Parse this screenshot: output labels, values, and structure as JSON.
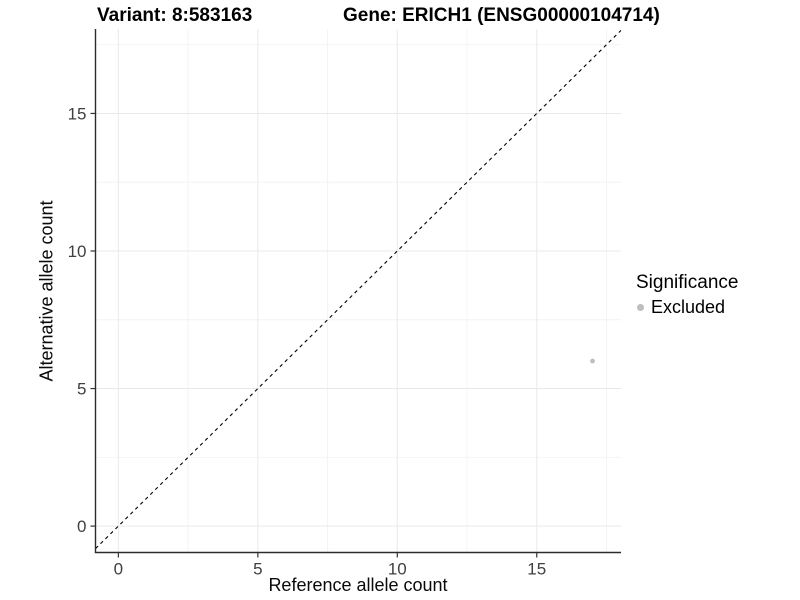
{
  "chart_data": {
    "type": "scatter",
    "title_left": "Variant: 8:583163",
    "title_right": "Gene: ERICH1 (ENSG00000104714)",
    "xlabel": "Reference allele count",
    "ylabel": "Alternative allele count",
    "xlim": [
      -0.82,
      18.02
    ],
    "ylim": [
      -0.96,
      18.07
    ],
    "x_ticks": [
      0,
      5,
      10,
      15
    ],
    "y_ticks": [
      0,
      5,
      10,
      15
    ],
    "x_minor_ticks": [
      2.5,
      7.5,
      12.5,
      17.5
    ],
    "y_minor_ticks": [
      2.5,
      7.5,
      12.5,
      17.5
    ],
    "grid": true,
    "legend_position": "right",
    "series": [
      {
        "name": "Excluded",
        "color": "#bebebe",
        "point_radius": 2.4,
        "points": [
          {
            "x": 17,
            "y": 6
          }
        ]
      }
    ],
    "reference_line": {
      "equation": "y = x",
      "style": "dashed",
      "color": "#000000"
    },
    "legend": {
      "title": "Significance",
      "entries": [
        {
          "label": "Excluded",
          "color": "#bebebe"
        }
      ]
    },
    "panel": {
      "background": "#ffffff",
      "grid_major_color": "#e9e9e9",
      "grid_minor_color": "#f4f4f4",
      "axis_line_color": "#2b2b2b",
      "tick_color": "#333333",
      "tick_label_color": "#404040"
    }
  }
}
